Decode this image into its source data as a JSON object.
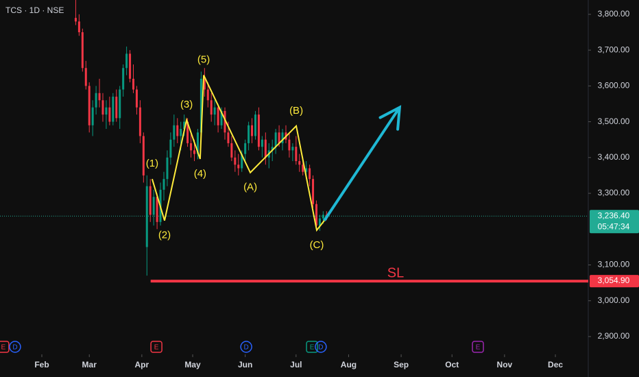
{
  "chart_data": {
    "type": "candlestick",
    "symbol_label": "TCS · 1D · NSE",
    "x": [
      52,
      54,
      56,
      58,
      60,
      62,
      64,
      66,
      68,
      70,
      72,
      74,
      76,
      78,
      80,
      82,
      84,
      86,
      88,
      90,
      92,
      94,
      96,
      98,
      100,
      102,
      104,
      106,
      108,
      110,
      112,
      114,
      116,
      118,
      120,
      122,
      124,
      126,
      128,
      130,
      132,
      134,
      136,
      138,
      140,
      142,
      144,
      146,
      148,
      150,
      152,
      154,
      156,
      158,
      160,
      162,
      164,
      166,
      168,
      170,
      172,
      174,
      176,
      178,
      180,
      182,
      184,
      186,
      188,
      190,
      192,
      194,
      196,
      198,
      200
    ],
    "open": [
      3790,
      3780,
      3750,
      3650,
      3600,
      3490,
      3540,
      3580,
      3560,
      3520,
      3540,
      3500,
      3570,
      3510,
      3590,
      3650,
      3690,
      3620,
      3590,
      3540,
      3460,
      3150,
      3320,
      3240,
      3290,
      3220,
      3310,
      3340,
      3400,
      3450,
      3490,
      3460,
      3480,
      3500,
      3440,
      3420,
      3410,
      3470,
      3620,
      3590,
      3560,
      3520,
      3540,
      3490,
      3530,
      3470,
      3440,
      3400,
      3380,
      3370,
      3410,
      3440,
      3490,
      3460,
      3520,
      3430,
      3450,
      3400,
      3420,
      3430,
      3470,
      3440,
      3470,
      3450,
      3420,
      3430,
      3390,
      3380,
      3360,
      3370,
      3340,
      3270,
      3210,
      3230,
      3240
    ],
    "high": [
      3840,
      3800,
      3760,
      3670,
      3610,
      3560,
      3600,
      3620,
      3580,
      3560,
      3570,
      3580,
      3590,
      3600,
      3660,
      3710,
      3700,
      3660,
      3600,
      3560,
      3470,
      3350,
      3340,
      3310,
      3300,
      3330,
      3360,
      3420,
      3470,
      3520,
      3510,
      3500,
      3520,
      3510,
      3470,
      3450,
      3480,
      3640,
      3650,
      3610,
      3580,
      3560,
      3550,
      3540,
      3540,
      3500,
      3460,
      3420,
      3410,
      3420,
      3450,
      3500,
      3510,
      3530,
      3540,
      3460,
      3470,
      3440,
      3450,
      3480,
      3490,
      3480,
      3490,
      3470,
      3440,
      3460,
      3410,
      3400,
      3390,
      3380,
      3350,
      3280,
      3240,
      3250,
      3250
    ],
    "low": [
      3770,
      3740,
      3640,
      3590,
      3470,
      3460,
      3520,
      3540,
      3500,
      3480,
      3490,
      3490,
      3500,
      3480,
      3570,
      3630,
      3610,
      3580,
      3520,
      3440,
      3330,
      3070,
      3220,
      3210,
      3200,
      3210,
      3280,
      3320,
      3380,
      3430,
      3440,
      3420,
      3460,
      3430,
      3400,
      3390,
      3395,
      3460,
      3570,
      3540,
      3500,
      3490,
      3470,
      3480,
      3450,
      3430,
      3390,
      3360,
      3350,
      3360,
      3390,
      3420,
      3440,
      3450,
      3420,
      3400,
      3380,
      3370,
      3390,
      3410,
      3430,
      3420,
      3440,
      3400,
      3390,
      3380,
      3360,
      3350,
      3340,
      3320,
      3260,
      3200,
      3195,
      3215,
      3225
    ],
    "close": [
      3780,
      3750,
      3650,
      3600,
      3490,
      3540,
      3580,
      3560,
      3520,
      3540,
      3500,
      3570,
      3510,
      3590,
      3650,
      3690,
      3620,
      3590,
      3540,
      3460,
      3350,
      3320,
      3240,
      3290,
      3220,
      3310,
      3340,
      3400,
      3450,
      3490,
      3460,
      3480,
      3500,
      3440,
      3420,
      3410,
      3470,
      3620,
      3590,
      3560,
      3520,
      3540,
      3490,
      3530,
      3470,
      3440,
      3400,
      3380,
      3370,
      3410,
      3440,
      3490,
      3460,
      3520,
      3430,
      3450,
      3400,
      3420,
      3430,
      3470,
      3440,
      3470,
      3450,
      3420,
      3430,
      3390,
      3380,
      3360,
      3370,
      3340,
      3270,
      3210,
      3230,
      3240,
      3236.4
    ],
    "up_color": "#089981",
    "down_color": "#f23645",
    "xlim": [
      7.32,
      354.4
    ],
    "xticks": [
      {
        "value": 32,
        "label": "Feb"
      },
      {
        "value": 60,
        "label": "Mar"
      },
      {
        "value": 91,
        "label": "Apr"
      },
      {
        "value": 121,
        "label": "May"
      },
      {
        "value": 152,
        "label": "Jun"
      },
      {
        "value": 182,
        "label": "Jul"
      },
      {
        "value": 213,
        "label": "Aug"
      },
      {
        "value": 244,
        "label": "Sep"
      },
      {
        "value": 274,
        "label": "Oct"
      },
      {
        "value": 305,
        "label": "Nov"
      },
      {
        "value": 335,
        "label": "Dec"
      }
    ],
    "ylim": [
      2854,
      3840
    ],
    "yticks": [
      {
        "value": 2900,
        "label": "2,900.00"
      },
      {
        "value": 3000,
        "label": "3,000.00"
      },
      {
        "value": 3100,
        "label": "3,100.00"
      },
      {
        "value": 3300,
        "label": "3,300.00"
      },
      {
        "value": 3400,
        "label": "3,400.00"
      },
      {
        "value": 3500,
        "label": "3,500.00"
      },
      {
        "value": 3600,
        "label": "3,600.00"
      },
      {
        "value": 3700,
        "label": "3,700.00"
      },
      {
        "value": 3800,
        "label": "3,800.00"
      }
    ],
    "last_price": {
      "value": 3236.4,
      "label": "3,236.40"
    },
    "countdown": "05:47:34",
    "last_price_color": "#22ab94",
    "waves": {
      "x": [
        97.1,
        104.4,
        117.4,
        125.4,
        127.5,
        155,
        182.1,
        194.2,
        198.7
      ],
      "values": [
        3340,
        3224,
        3505,
        3396,
        3630,
        3358,
        3488,
        3197,
        3224
      ],
      "labels": [
        "(1)",
        "(2)",
        "(3)",
        "(4)",
        "(5)",
        "(A)",
        "(B)",
        "(C)",
        null
      ],
      "color": "#ffeb3b"
    },
    "projection": {
      "x": [
        198.7,
        243.1
      ],
      "values": [
        3224,
        3540
      ],
      "color": "#1fb8d4"
    },
    "stop_loss": {
      "x_start": 96.2,
      "level": {
        "value": 3054.9,
        "label": "3,054.90"
      },
      "text": "SL",
      "color": "#f23645"
    },
    "events": [
      {
        "x": 9.3,
        "label": "E",
        "color": "#f23645"
      },
      {
        "x": 16.2,
        "label": "D",
        "color": "#2962ff"
      },
      {
        "x": 99.6,
        "label": "E",
        "color": "#f23645"
      },
      {
        "x": 152.6,
        "label": "D",
        "color": "#2962ff"
      },
      {
        "x": 191.4,
        "label": "E",
        "color": "#089981"
      },
      {
        "x": 196.6,
        "label": "D",
        "color": "#2962ff"
      },
      {
        "x": 289.3,
        "label": "E",
        "color": "#9c27b0"
      }
    ]
  }
}
